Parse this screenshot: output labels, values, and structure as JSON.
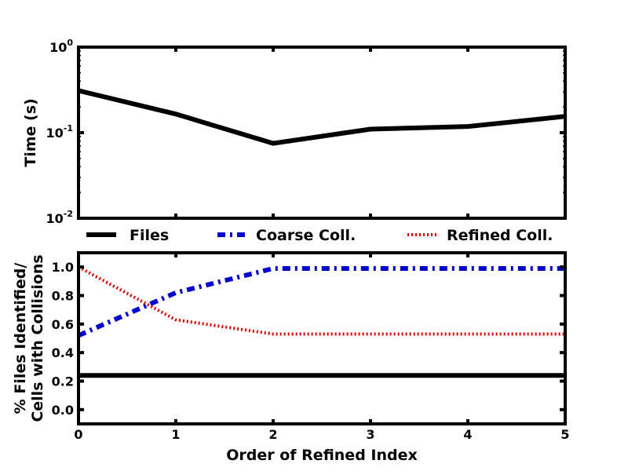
{
  "chart_data": [
    {
      "type": "line",
      "ylabel": "Time (s)",
      "yscale": "log",
      "ylim": [
        0.01,
        1
      ],
      "xlim": [
        0,
        5
      ],
      "x": [
        0,
        1,
        2,
        3,
        4,
        5
      ],
      "yticks": [
        {
          "base": "10",
          "exp": "0",
          "value": 1
        },
        {
          "base": "10",
          "exp": "-1",
          "value": 0.1
        },
        {
          "base": "10",
          "exp": "-2",
          "value": 0.01
        }
      ],
      "series": [
        {
          "name": "Files",
          "color": "#000000",
          "values": [
            0.31,
            0.165,
            0.075,
            0.11,
            0.118,
            0.155
          ]
        }
      ]
    },
    {
      "type": "line",
      "ylabel": [
        "% Files Identified/",
        "Cells with Collisions"
      ],
      "xlabel": "Order of Refined Index",
      "ylim": [
        -0.1,
        1.1
      ],
      "xlim": [
        0,
        5
      ],
      "x": [
        0,
        1,
        2,
        3,
        4,
        5
      ],
      "xticks": [
        "0",
        "1",
        "2",
        "3",
        "4",
        "5"
      ],
      "yticks": [
        "0.0",
        "0.2",
        "0.4",
        "0.6",
        "0.8",
        "1.0"
      ],
      "series": [
        {
          "name": "Files",
          "color": "#000000",
          "style": "solid",
          "values": [
            0.24,
            0.24,
            0.24,
            0.24,
            0.24,
            0.24
          ]
        },
        {
          "name": "Coarse Coll.",
          "color": "#0000cc",
          "style": "dashdot",
          "values": [
            0.52,
            0.82,
            0.99,
            0.99,
            0.99,
            0.99
          ]
        },
        {
          "name": "Refined Coll.",
          "color": "#dd0000",
          "style": "dotted",
          "values": [
            1.0,
            0.63,
            0.53,
            0.53,
            0.53,
            0.53
          ]
        }
      ]
    }
  ],
  "legend": {
    "placement": "between-panels",
    "entries": [
      {
        "label": "Files",
        "color": "#000000",
        "style": "solid"
      },
      {
        "label": "Coarse Coll.",
        "color": "#0000cc",
        "style": "dashdot"
      },
      {
        "label": "Refined Coll.",
        "color": "#dd0000",
        "style": "dotted"
      }
    ]
  }
}
